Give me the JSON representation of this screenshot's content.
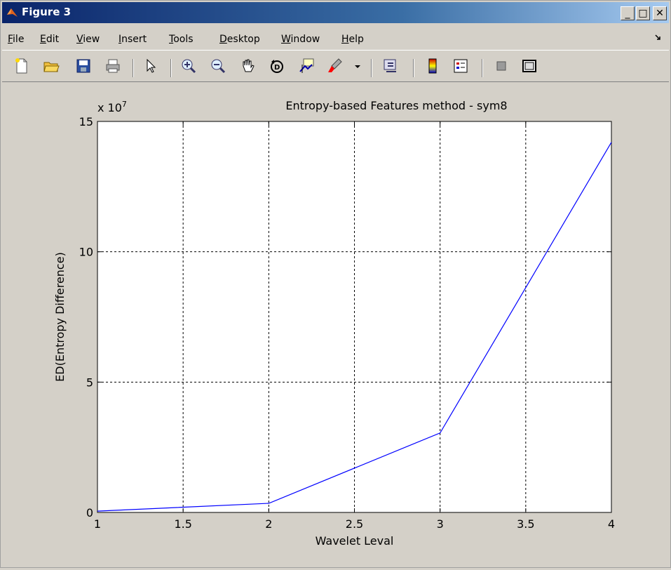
{
  "window": {
    "title": "Figure 3",
    "minimize_label": "_",
    "maximize_label": "□",
    "close_label": "✕"
  },
  "menu": {
    "items": [
      {
        "label": "File",
        "u": "F",
        "rest": "ile"
      },
      {
        "label": "Edit",
        "u": "E",
        "rest": "dit"
      },
      {
        "label": "View",
        "u": "V",
        "rest": "iew"
      },
      {
        "label": "Insert",
        "u": "I",
        "rest": "nsert"
      },
      {
        "label": "Tools",
        "u": "T",
        "rest": "ools"
      },
      {
        "label": "Desktop",
        "u": "D",
        "rest": "esktop"
      },
      {
        "label": "Window",
        "u": "W",
        "rest": "indow"
      },
      {
        "label": "Help",
        "u": "H",
        "rest": "elp"
      }
    ],
    "overflow_icon": "arrow-curve-icon"
  },
  "toolbar": {
    "buttons": [
      "new-figure-icon",
      "open-file-icon",
      "save-icon",
      "print-icon",
      "pointer-icon",
      "zoom-in-icon",
      "zoom-out-icon",
      "pan-icon",
      "rotate-3d-icon",
      "data-cursor-icon",
      "brush-icon",
      "dropdown-arrow-icon",
      "link-icon",
      "colorbar-icon",
      "legend-icon",
      "hide-plot-tools-icon",
      "show-plot-tools-icon"
    ]
  },
  "chart_data": {
    "type": "line",
    "title": "Entropy-based Features method - sym8",
    "xlabel": "Wavelet Leval",
    "ylabel": "ED(Entropy Difference)",
    "y_exponent_label": "x 10",
    "y_exponent_power": "7",
    "xlim": [
      1,
      4
    ],
    "ylim": [
      0,
      15
    ],
    "grid": true,
    "xticks": [
      1,
      1.5,
      2,
      2.5,
      3,
      3.5,
      4
    ],
    "xtick_labels": [
      "1",
      "1.5",
      "2",
      "2.5",
      "3",
      "3.5",
      "4"
    ],
    "yticks": [
      0,
      5,
      10,
      15
    ],
    "ytick_labels": [
      "0",
      "5",
      "10",
      "15"
    ],
    "series": [
      {
        "color": "#0000ff",
        "x": [
          1,
          2,
          3,
          4
        ],
        "y": [
          0.05,
          0.35,
          3.05,
          14.2
        ]
      }
    ]
  }
}
